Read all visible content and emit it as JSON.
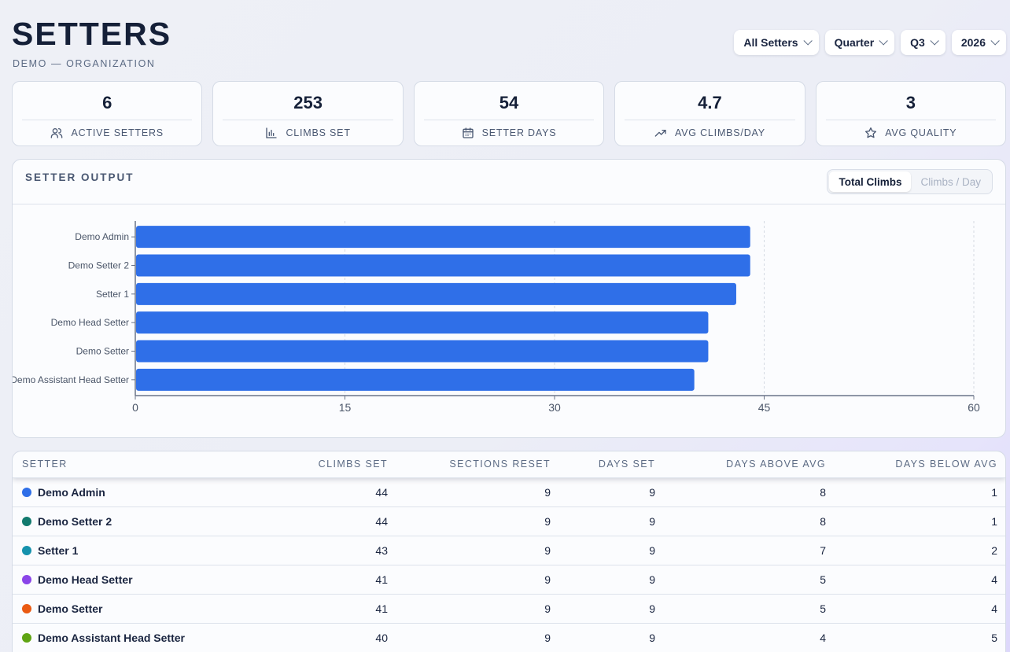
{
  "page": {
    "title": "SETTERS",
    "subtitle": "DEMO — ORGANIZATION"
  },
  "filters": [
    {
      "label": "All Setters"
    },
    {
      "label": "Quarter"
    },
    {
      "label": "Q3"
    },
    {
      "label": "2026"
    }
  ],
  "stats": [
    {
      "value": "6",
      "label": "ACTIVE SETTERS",
      "icon": "users-icon"
    },
    {
      "value": "253",
      "label": "CLIMBS SET",
      "icon": "bar-chart-icon"
    },
    {
      "value": "54",
      "label": "SETTER DAYS",
      "icon": "calendar-icon"
    },
    {
      "value": "4.7",
      "label": "AVG CLIMBS/DAY",
      "icon": "trending-up-icon"
    },
    {
      "value": "3",
      "label": "AVG QUALITY",
      "icon": "star-icon"
    }
  ],
  "chart_section": {
    "title": "SETTER OUTPUT",
    "toggle": {
      "active": "Total Climbs",
      "inactive": "Climbs / Day"
    }
  },
  "chart_data": {
    "type": "bar",
    "orientation": "horizontal",
    "categories": [
      "Demo Admin",
      "Demo Setter 2",
      "Setter 1",
      "Demo Head Setter",
      "Demo Setter",
      "Demo Assistant Head Setter"
    ],
    "values": [
      44,
      44,
      43,
      41,
      41,
      40
    ],
    "xlim": [
      0,
      60
    ],
    "xticks": [
      0,
      15,
      30,
      45,
      60
    ],
    "grid": true,
    "bar_color": "#2f6fe8"
  },
  "table": {
    "columns": [
      "SETTER",
      "CLIMBS SET",
      "SECTIONS RESET",
      "DAYS SET",
      "DAYS ABOVE AVG",
      "DAYS BELOW AVG"
    ],
    "rows": [
      {
        "name": "Demo Admin",
        "color": "#2f6fe8",
        "climbs": "44",
        "sections": "9",
        "days": "9",
        "above": "8",
        "below": "1"
      },
      {
        "name": "Demo Setter 2",
        "color": "#127a6e",
        "climbs": "44",
        "sections": "9",
        "days": "9",
        "above": "8",
        "below": "1"
      },
      {
        "name": "Setter 1",
        "color": "#1692ad",
        "climbs": "43",
        "sections": "9",
        "days": "9",
        "above": "7",
        "below": "2"
      },
      {
        "name": "Demo Head Setter",
        "color": "#8a45e8",
        "climbs": "41",
        "sections": "9",
        "days": "9",
        "above": "5",
        "below": "4"
      },
      {
        "name": "Demo Setter",
        "color": "#ea5a12",
        "climbs": "41",
        "sections": "9",
        "days": "9",
        "above": "5",
        "below": "4"
      },
      {
        "name": "Demo Assistant Head Setter",
        "color": "#5fa413",
        "climbs": "40",
        "sections": "9",
        "days": "9",
        "above": "4",
        "below": "5"
      }
    ]
  }
}
